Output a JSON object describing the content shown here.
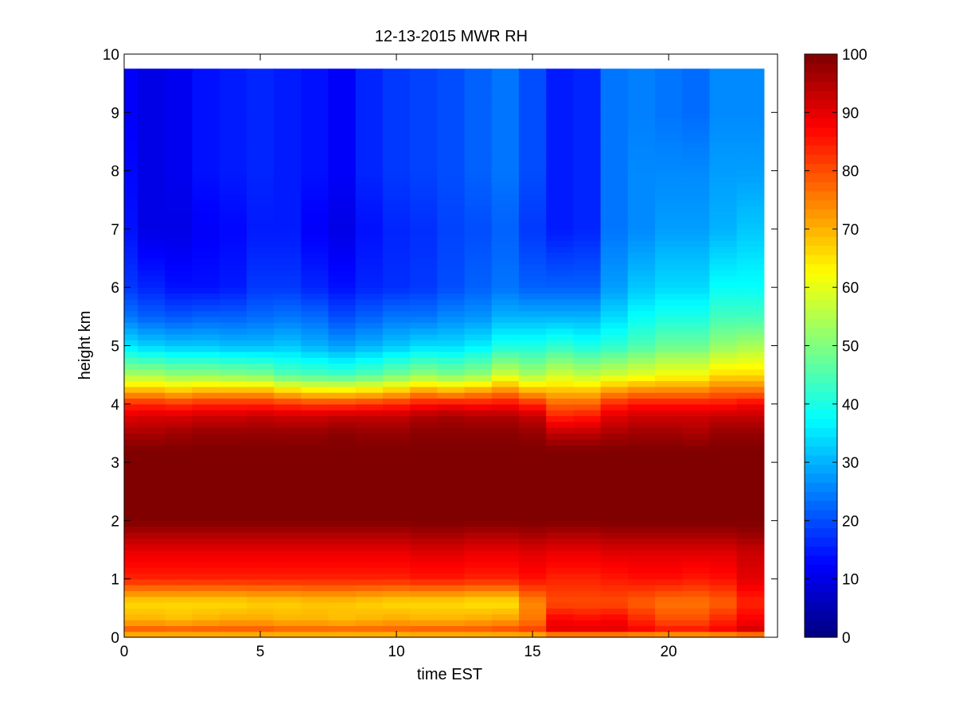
{
  "chart_data": {
    "type": "heatmap",
    "title": "12-13-2015 MWR RH",
    "xlabel": "time EST",
    "ylabel": "height km",
    "xlim": [
      0,
      24
    ],
    "ylim": [
      0,
      10
    ],
    "xticks": [
      0,
      5,
      10,
      15,
      20
    ],
    "xtick_labels": [
      "0",
      "5",
      "10",
      "15",
      "20"
    ],
    "yticks": [
      0,
      1,
      2,
      3,
      4,
      5,
      6,
      7,
      8,
      9,
      10
    ],
    "ytick_labels": [
      "0",
      "1",
      "2",
      "3",
      "4",
      "5",
      "6",
      "7",
      "8",
      "9",
      "10"
    ],
    "colormap": "jet",
    "clim": [
      0,
      100
    ],
    "colorbar_ticks": [
      0,
      10,
      20,
      30,
      40,
      50,
      60,
      70,
      80,
      90,
      100
    ],
    "colorbar_tick_labels": [
      "0",
      "10",
      "20",
      "30",
      "40",
      "50",
      "60",
      "70",
      "80",
      "90",
      "100"
    ],
    "times_hours": [
      0.0,
      1.0,
      2.0,
      3.0,
      4.0,
      5.0,
      6.0,
      7.0,
      8.0,
      9.0,
      10.0,
      11.0,
      12.0,
      13.0,
      14.0,
      15.0,
      16.0,
      17.0,
      18.0,
      19.0,
      20.0,
      21.0,
      22.0,
      23.0
    ],
    "data_top_km": 9.75,
    "profile_levels_km": [
      0.0,
      0.1,
      0.3,
      0.6,
      1.0,
      1.5,
      1.8,
      2.0,
      2.7,
      3.2,
      3.5,
      3.8,
      4.0,
      4.2,
      4.5,
      5.0,
      5.5,
      6.0,
      7.0,
      8.0,
      9.0,
      9.75
    ],
    "rh_profiles_percent": [
      [
        62,
        80,
        70,
        66,
        84,
        90,
        96,
        100,
        100,
        100,
        96,
        90,
        84,
        72,
        54,
        35,
        24,
        18,
        14,
        13,
        12,
        12
      ],
      [
        62,
        80,
        70,
        66,
        84,
        90,
        96,
        100,
        100,
        100,
        96,
        91,
        84,
        72,
        54,
        33,
        22,
        16,
        10,
        10,
        10,
        10
      ],
      [
        62,
        80,
        69,
        66,
        84,
        90,
        96,
        100,
        100,
        100,
        97,
        91,
        83,
        70,
        52,
        32,
        21,
        14,
        10,
        11,
        11,
        11
      ],
      [
        62,
        80,
        70,
        66,
        84,
        90,
        96,
        100,
        100,
        100,
        98,
        92,
        84,
        72,
        52,
        32,
        22,
        14,
        12,
        14,
        14,
        14
      ],
      [
        62,
        80,
        71,
        66,
        84,
        90,
        96,
        100,
        100,
        100,
        98,
        92,
        84,
        72,
        51,
        31,
        22,
        15,
        13,
        15,
        15,
        15
      ],
      [
        62,
        80,
        71,
        67,
        84,
        90,
        96,
        100,
        100,
        100,
        98,
        93,
        84,
        72,
        50,
        31,
        23,
        18,
        15,
        16,
        16,
        16
      ],
      [
        62,
        79,
        70,
        67,
        84,
        90,
        96,
        100,
        100,
        100,
        98,
        92,
        83,
        69,
        46,
        32,
        24,
        18,
        15,
        15,
        15,
        15
      ],
      [
        62,
        79,
        70,
        68,
        84,
        90,
        96,
        100,
        100,
        100,
        98,
        92,
        82,
        67,
        45,
        30,
        23,
        16,
        12,
        14,
        14,
        14
      ],
      [
        62,
        79,
        69,
        68,
        84,
        90,
        96,
        100,
        100,
        100,
        99,
        93,
        82,
        67,
        44,
        28,
        20,
        14,
        10,
        12,
        12,
        12
      ],
      [
        62,
        79,
        70,
        67,
        84,
        90,
        96,
        100,
        100,
        100,
        98,
        93,
        83,
        68,
        46,
        30,
        22,
        16,
        14,
        16,
        16,
        16
      ],
      [
        62,
        79,
        71,
        66,
        84,
        90,
        96,
        100,
        100,
        100,
        98,
        93,
        84,
        70,
        49,
        32,
        24,
        17,
        16,
        18,
        18,
        18
      ],
      [
        62,
        80,
        70,
        66,
        85,
        91,
        97,
        100,
        100,
        100,
        99,
        95,
        86,
        74,
        52,
        34,
        24,
        18,
        17,
        19,
        19,
        19
      ],
      [
        62,
        80,
        70,
        66,
        85,
        91,
        97,
        100,
        100,
        100,
        99,
        96,
        87,
        72,
        50,
        34,
        26,
        20,
        19,
        20,
        20,
        20
      ],
      [
        62,
        80,
        71,
        65,
        84,
        90,
        96,
        100,
        100,
        100,
        99,
        95,
        86,
        74,
        52,
        36,
        27,
        22,
        20,
        22,
        22,
        22
      ],
      [
        62,
        81,
        72,
        65,
        84,
        90,
        96,
        100,
        100,
        100,
        99,
        95,
        87,
        76,
        58,
        40,
        30,
        24,
        22,
        24,
        24,
        24
      ],
      [
        62,
        82,
        76,
        74,
        86,
        91,
        97,
        100,
        100,
        100,
        98,
        93,
        84,
        72,
        54,
        40,
        30,
        22,
        18,
        20,
        20,
        20
      ],
      [
        62,
        90,
        88,
        80,
        84,
        90,
        96,
        100,
        100,
        100,
        94,
        84,
        78,
        70,
        58,
        42,
        30,
        22,
        15,
        15,
        15,
        15
      ],
      [
        62,
        90,
        87,
        80,
        84,
        90,
        96,
        100,
        100,
        100,
        94,
        85,
        78,
        70,
        56,
        40,
        30,
        22,
        16,
        16,
        16,
        16
      ],
      [
        62,
        90,
        88,
        80,
        85,
        91,
        97,
        100,
        100,
        100,
        96,
        90,
        84,
        74,
        58,
        42,
        34,
        28,
        24,
        24,
        24,
        24
      ],
      [
        62,
        88,
        84,
        78,
        86,
        91,
        97,
        100,
        100,
        100,
        97,
        92,
        86,
        76,
        60,
        45,
        38,
        32,
        26,
        26,
        25,
        25
      ],
      [
        62,
        86,
        80,
        76,
        86,
        91,
        97,
        100,
        100,
        100,
        97,
        92,
        86,
        76,
        62,
        48,
        40,
        34,
        28,
        26,
        24,
        24
      ],
      [
        62,
        86,
        80,
        76,
        85,
        91,
        97,
        100,
        100,
        100,
        96,
        92,
        86,
        76,
        62,
        48,
        40,
        34,
        28,
        26,
        23,
        23
      ],
      [
        62,
        88,
        84,
        78,
        86,
        91,
        97,
        100,
        100,
        100,
        98,
        93,
        86,
        78,
        66,
        52,
        44,
        38,
        30,
        28,
        26,
        26
      ],
      [
        62,
        92,
        88,
        84,
        90,
        93,
        98,
        100,
        100,
        100,
        98,
        93,
        88,
        78,
        66,
        54,
        44,
        38,
        32,
        28,
        26,
        26
      ]
    ]
  }
}
